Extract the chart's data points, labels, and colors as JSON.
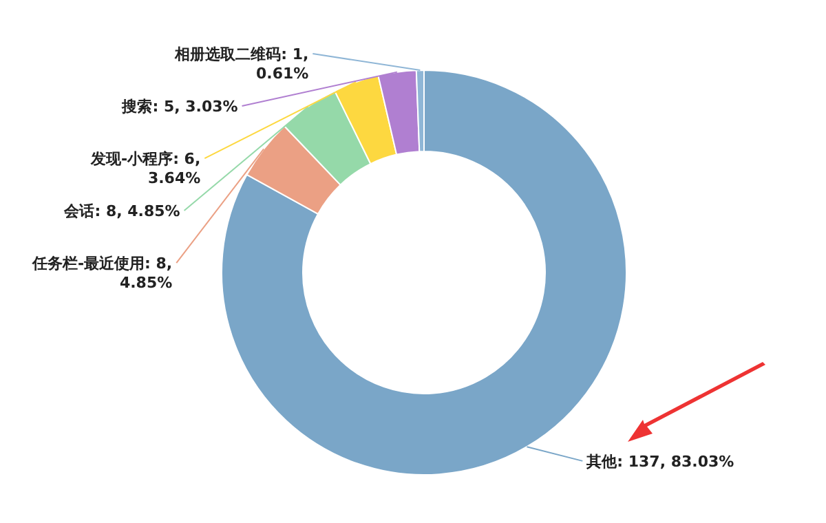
{
  "chart_data": {
    "type": "donut",
    "categories": [
      "其他",
      "任务栏-最近使用",
      "会话",
      "发现-小程序",
      "搜索",
      "相册选取二维码"
    ],
    "values": [
      137,
      8,
      8,
      6,
      5,
      1
    ],
    "value_labels": [
      "137, 83.03%",
      "8, 4.85%",
      "8, 4.85%",
      "6, 3.64%",
      "5, 3.03%",
      "1, 0.61%"
    ],
    "colors": [
      "#7aa6c8",
      "#eba084",
      "#95d9a9",
      "#fdd840",
      "#b07fd1",
      "#8fb6d6"
    ]
  }
}
